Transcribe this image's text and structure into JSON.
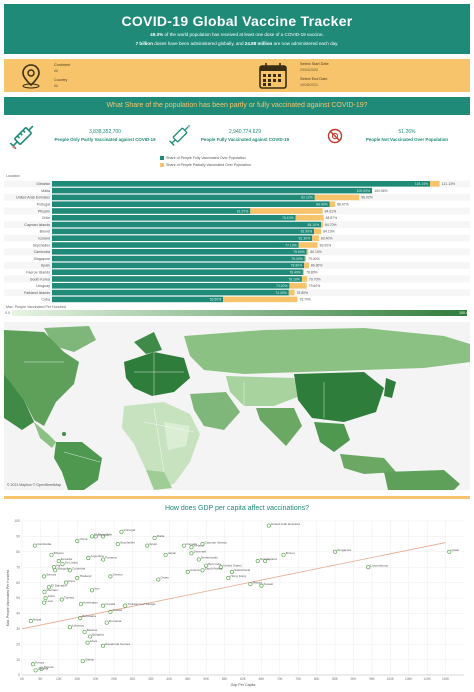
{
  "header": {
    "title": "COVID-19 Global Vaccine Tracker",
    "line1_pct": "49.3%",
    "line1_rest": " of the world population has received at least one dose of a COVID-19 vaccine.",
    "line2_a": "7 billion",
    "line2_b": " doses have been administered globally, and ",
    "line2_c": "24.88 million",
    "line2_d": " are now administered each day."
  },
  "filters": {
    "continent_label": "Continent",
    "continent_value": "All",
    "country_label": "Country",
    "country_value": "All",
    "start_label": "Select Start Date",
    "start_value": "29/04/2020",
    "end_label": "Select End Date",
    "end_value": "10/28/2021",
    "icons": [
      "map-pin-icon",
      "calendar-icon"
    ],
    "bg_color": "#f7c46c"
  },
  "question1": "What Share of the population has been partly or fully vaccinated against COVID-19?",
  "kpis": [
    {
      "value": "3,838,352,700",
      "label": "People Only Partly Vaccinated against COVID-19",
      "icon": "syringe-icon"
    },
    {
      "value": "2,940,774,629",
      "label": "People Fully Vaccinated against COVID-19",
      "icon": "syringe-icon"
    },
    {
      "value": "51.26%",
      "label": "People Not Vaccinated Over Population",
      "icon": "no-virus-icon"
    }
  ],
  "location_label": "Location",
  "map_legend_label": "Max. People Vaccinated Per Hundred",
  "map_legend_min": "0.0",
  "map_legend_max": "100.4",
  "map_credit": "© 2021 Mapbox © OpenStreetMap",
  "question2": "How does GDP per capita affect vaccinations?",
  "colors": {
    "teal": "#1f8a78",
    "gold": "#f7c46c"
  },
  "chart_data": [
    {
      "type": "bar",
      "orientation": "horizontal",
      "stacked": true,
      "legend": [
        "Share of People Fully Vaccinated Over Population",
        "Share of People Partially Vaccinated Over Population"
      ],
      "categories": [
        "Gibraltar",
        "Malta",
        "United Arab Emirates",
        "Portugal",
        "Pitcairn",
        "Chile",
        "Cayman Islands",
        "Brunei",
        "Iceland",
        "Seychelles",
        "Cambodia",
        "Singapore",
        "Spain",
        "Faeroe Islands",
        "South Korea",
        "Uruguay",
        "Falkland Islands",
        "Cuba"
      ],
      "series": [
        {
          "name": "Share of People Fully Vaccinated Over Population",
          "values": [
            118.14,
            100.0,
            82.12,
            86.8,
            61.97,
            76.1,
            84.1,
            81.9,
            81.3,
            77.1,
            79.6,
            79.0,
            78.8,
            78.4,
            78.1,
            74.2,
            74.0,
            53.5
          ]
        },
        {
          "name": "Share of People Partially Vaccinated Over Population",
          "values": [
            2.99,
            0.06,
            13.9,
            1.67,
            22.6,
            8.8,
            0.6,
            2.2,
            2.1,
            5.9,
            0.5,
            0.4,
            1.5,
            0.4,
            1.6,
            5.4,
            1.8,
            23.2
          ]
        }
      ],
      "labels_full": [
        "118.14%",
        "100.00%",
        "82.12%",
        "86.80%",
        "61.97%",
        "76.10%",
        "84.10%",
        "81.90%",
        "81.30%",
        "77.10%",
        "79.60%",
        "79.00%",
        "78.80%",
        "78.40%",
        "78.10%",
        "74.20%",
        "74.00%",
        "53.50%"
      ],
      "labels_total": [
        "121.13%",
        "100.06%",
        "96.02%",
        "88.47%",
        "84.61%",
        "84.87%",
        "84.70%",
        "84.10%",
        "83.40%",
        "83.00%",
        "80.10%",
        "79.40%",
        "80.30%",
        "78.80%",
        "79.70%",
        "79.60%",
        "75.80%",
        "76.70%"
      ]
    },
    {
      "type": "scatter",
      "title": "How does GDP per capita affect vaccinations?",
      "xlabel": "Gdp Per Capita",
      "ylabel": "Max. People Vaccinated Per Hundred",
      "xlim": [
        0,
        120000
      ],
      "ylim": [
        0,
        100
      ],
      "xticks": [
        "0K",
        "5K",
        "10K",
        "15K",
        "20K",
        "25K",
        "30K",
        "35K",
        "40K",
        "45K",
        "50K",
        "55K",
        "60K",
        "65K",
        "70K",
        "75K",
        "80K",
        "85K",
        "90K",
        "95K",
        "100K",
        "105K",
        "110K",
        "115K"
      ],
      "yticks": [
        "0",
        "10",
        "20",
        "30",
        "40",
        "50",
        "60",
        "70",
        "80",
        "90",
        "100"
      ],
      "trendline": [
        [
          0,
          30
        ],
        [
          115000,
          86
        ]
      ],
      "points": [
        {
          "label": "United Arab Emirates",
          "x": 67000,
          "y": 97
        },
        {
          "label": "Qatar",
          "x": 116000,
          "y": 80
        },
        {
          "label": "Singapore",
          "x": 85000,
          "y": 80
        },
        {
          "label": "Luxembourg",
          "x": 94000,
          "y": 70
        },
        {
          "label": "Iceland",
          "x": 46000,
          "y": 83
        },
        {
          "label": "Netherlands",
          "x": 48000,
          "y": 75
        },
        {
          "label": "Denmark",
          "x": 46000,
          "y": 79
        },
        {
          "label": "Malta",
          "x": 36000,
          "y": 89
        },
        {
          "label": "Spain",
          "x": 34000,
          "y": 84
        },
        {
          "label": "Canada",
          "x": 44000,
          "y": 84
        },
        {
          "label": "Norway",
          "x": 64000,
          "y": 74
        },
        {
          "label": "Ireland",
          "x": 66000,
          "y": 74
        },
        {
          "label": "Switzerland",
          "x": 57000,
          "y": 67
        },
        {
          "label": "United States",
          "x": 54000,
          "y": 70
        },
        {
          "label": "Brunei",
          "x": 71000,
          "y": 78
        },
        {
          "label": "Macao",
          "x": 62000,
          "y": 59
        },
        {
          "label": "Kuwait",
          "x": 65000,
          "y": 58
        },
        {
          "label": "Hong Kong",
          "x": 56000,
          "y": 63
        },
        {
          "label": "Austria",
          "x": 45000,
          "y": 67
        },
        {
          "label": "Bermuda",
          "x": 50000,
          "y": 71
        },
        {
          "label": "Oman",
          "x": 37000,
          "y": 62
        },
        {
          "label": "Chile",
          "x": 22000,
          "y": 90
        },
        {
          "label": "Portugal",
          "x": 27000,
          "y": 93
        },
        {
          "label": "Cuba",
          "x": 19000,
          "y": 90
        },
        {
          "label": "Uruguay",
          "x": 20000,
          "y": 90
        },
        {
          "label": "Cambodia",
          "x": 3500,
          "y": 84
        },
        {
          "label": "China",
          "x": 15000,
          "y": 87
        },
        {
          "label": "Panama",
          "x": 22000,
          "y": 75
        },
        {
          "label": "Mongolia",
          "x": 9000,
          "y": 68
        },
        {
          "label": "Ecuador",
          "x": 10000,
          "y": 74
        },
        {
          "label": "Fiji",
          "x": 8700,
          "y": 70
        },
        {
          "label": "Sri Lanka",
          "x": 11000,
          "y": 72
        },
        {
          "label": "Argentina",
          "x": 18000,
          "y": 76
        },
        {
          "label": "Colombia",
          "x": 13000,
          "y": 68
        },
        {
          "label": "Samoa",
          "x": 6000,
          "y": 64
        },
        {
          "label": "Bhutan",
          "x": 8000,
          "y": 78
        },
        {
          "label": "Cayman Islands",
          "x": 49000,
          "y": 85
        },
        {
          "label": "Saudi Arabia",
          "x": 49000,
          "y": 68
        },
        {
          "label": "Seychelles",
          "x": 26000,
          "y": 85
        },
        {
          "label": "Laos",
          "x": 6000,
          "y": 47
        },
        {
          "label": "Nepal",
          "x": 2400,
          "y": 35
        },
        {
          "label": "Nigeria",
          "x": 5300,
          "y": 4
        },
        {
          "label": "Gabon",
          "x": 16500,
          "y": 9
        },
        {
          "label": "Equatorial Guinea",
          "x": 22000,
          "y": 19
        },
        {
          "label": "Bulgaria",
          "x": 18500,
          "y": 25
        },
        {
          "label": "Romania",
          "x": 23000,
          "y": 34
        },
        {
          "label": "Lebanon",
          "x": 13000,
          "y": 31
        },
        {
          "label": "Belarus",
          "x": 17000,
          "y": 28
        },
        {
          "label": "Libya",
          "x": 17800,
          "y": 21
        },
        {
          "label": "Russia",
          "x": 24000,
          "y": 41
        },
        {
          "label": "Trinidad and Tobago",
          "x": 28000,
          "y": 45
        },
        {
          "label": "Botswana",
          "x": 15800,
          "y": 37
        },
        {
          "label": "Azerbaijan",
          "x": 16000,
          "y": 46
        },
        {
          "label": "Thailand",
          "x": 15000,
          "y": 63
        },
        {
          "label": "El Salvador",
          "x": 7300,
          "y": 57
        },
        {
          "label": "Japan",
          "x": 39000,
          "y": 78
        },
        {
          "label": "Greece",
          "x": 24000,
          "y": 64
        },
        {
          "label": "Croatia",
          "x": 22000,
          "y": 45
        },
        {
          "label": "Kenya",
          "x": 3000,
          "y": 7
        },
        {
          "label": "Zambia",
          "x": 3700,
          "y": 3
        },
        {
          "label": "Tunisia",
          "x": 10800,
          "y": 49
        },
        {
          "label": "Peru",
          "x": 12000,
          "y": 60
        },
        {
          "label": "Iran",
          "x": 19000,
          "y": 55
        },
        {
          "label": "India",
          "x": 6400,
          "y": 50
        },
        {
          "label": "Vietnam",
          "x": 6100,
          "y": 54
        }
      ]
    }
  ]
}
